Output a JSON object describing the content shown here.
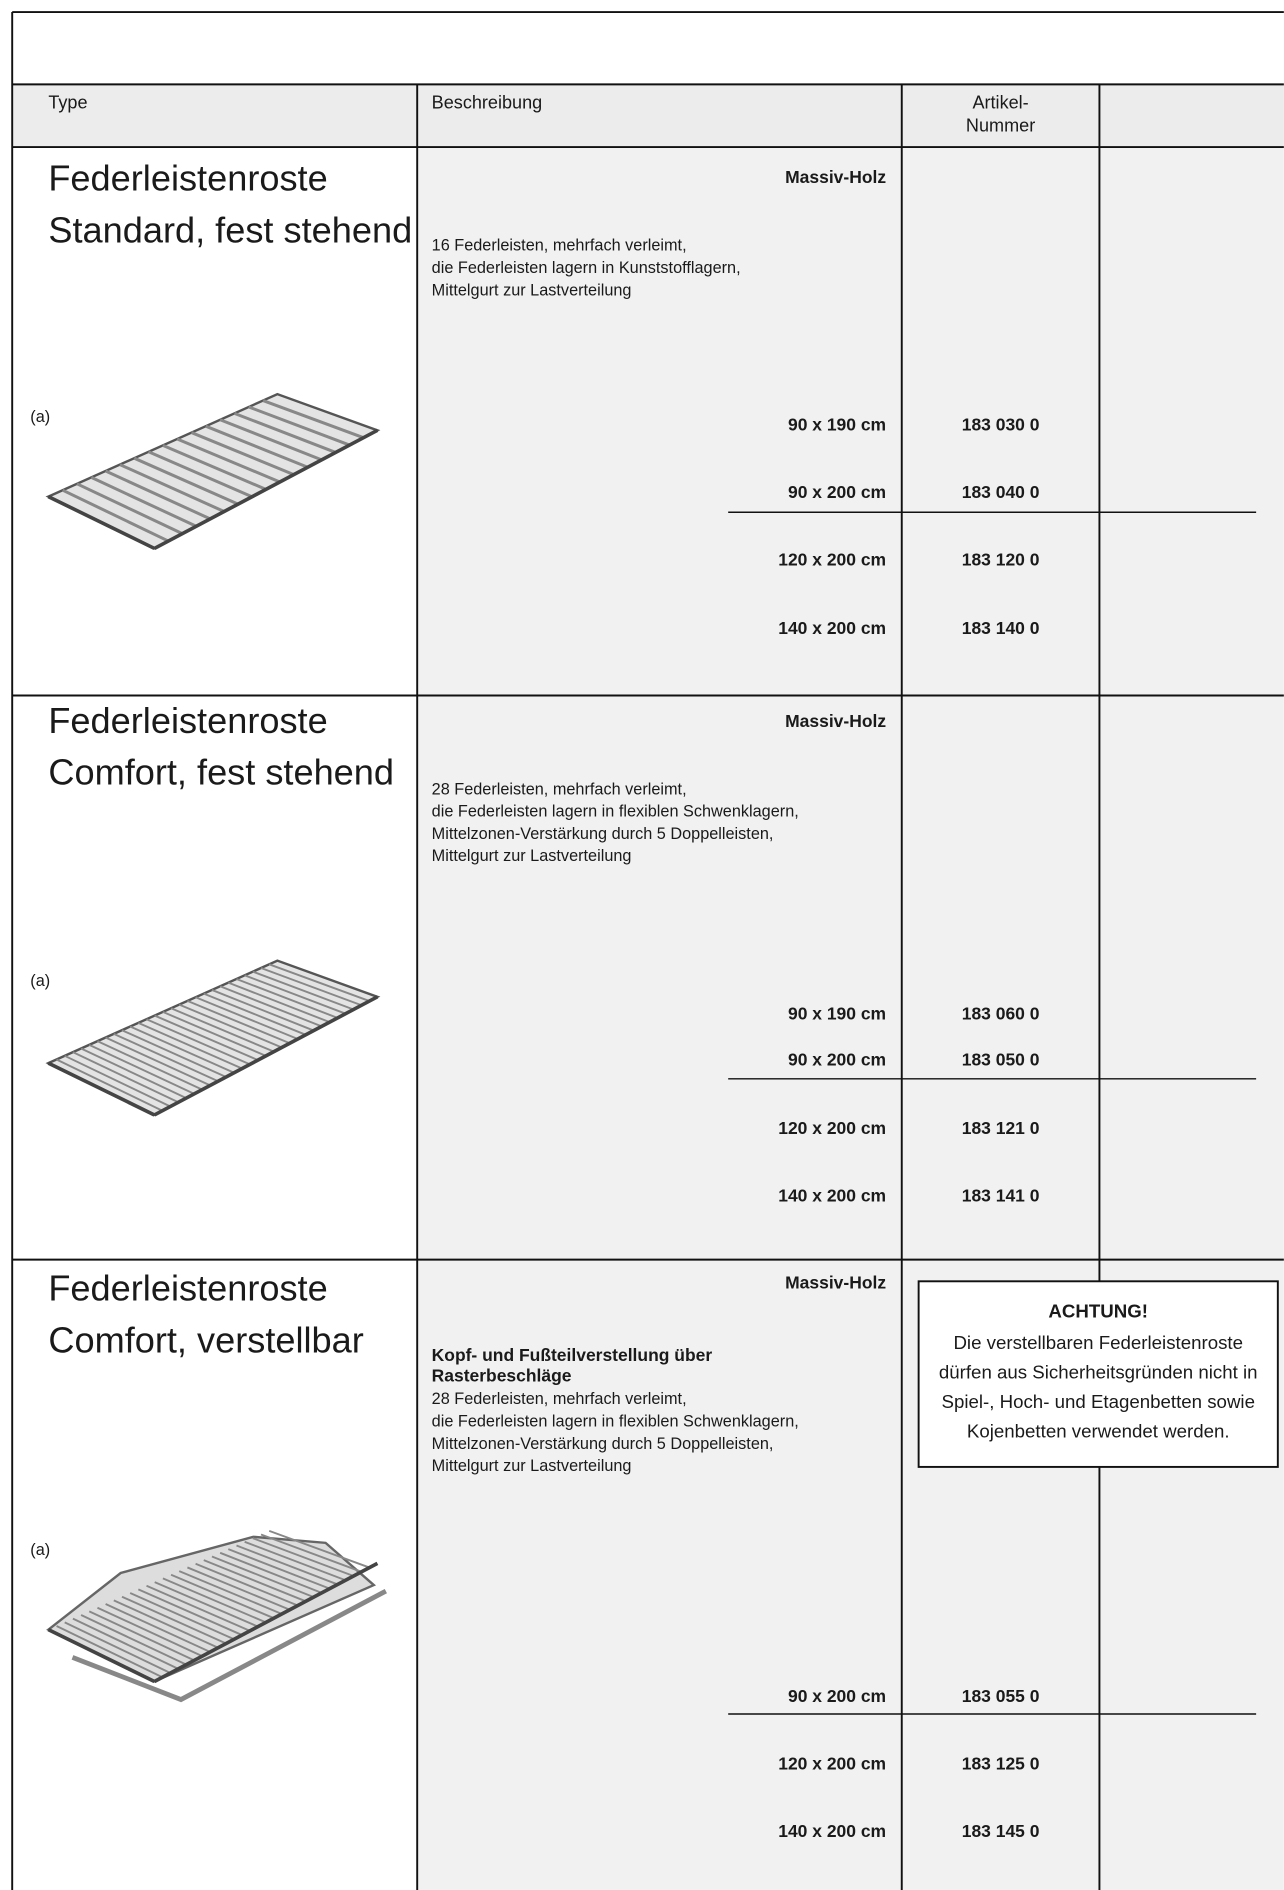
{
  "header": {
    "columns": [
      "Type",
      "Beschreibung"
    ],
    "article": [
      "Artikel-",
      "Nummer"
    ]
  },
  "sections": [
    {
      "title": [
        "Federleistenroste",
        "Standard, fest stehend"
      ],
      "material": "Massiv-Holz",
      "description": [
        "16 Federleisten, mehrfach verleimt,",
        "die Federleisten lagern in Kunststofflagern,",
        "Mittelgurt zur Lastverteilung"
      ],
      "image_label": "(a)",
      "items": [
        {
          "size": "90 x 190 cm",
          "number": "183 030 0"
        },
        {
          "size": "90 x 200 cm",
          "number": "183 040 0"
        },
        {
          "size": "120 x 200 cm",
          "number": "183 120 0"
        },
        {
          "size": "140 x 200 cm",
          "number": "183 140 0"
        }
      ]
    },
    {
      "title": [
        "Federleistenroste",
        "Comfort, fest stehend"
      ],
      "material": "Massiv-Holz",
      "description": [
        "28 Federleisten, mehrfach verleimt,",
        "die Federleisten lagern in flexiblen Schwenklagern,",
        "Mittelzonen-Verstärkung durch 5 Doppelleisten,",
        "Mittelgurt zur Lastverteilung"
      ],
      "image_label": "(a)",
      "items": [
        {
          "size": "90 x 190 cm",
          "number": "183 060 0"
        },
        {
          "size": "90 x 200 cm",
          "number": "183 050 0"
        },
        {
          "size": "120 x 200 cm",
          "number": "183 121 0"
        },
        {
          "size": "140 x 200 cm",
          "number": "183 141 0"
        }
      ]
    },
    {
      "title": [
        "Federleistenroste",
        "Comfort, verstellbar"
      ],
      "material": "Massiv-Holz",
      "lead": [
        "Kopf- und Fußteilverstellung über",
        "Rasterbeschläge"
      ],
      "description": [
        "28 Federleisten, mehrfach verleimt,",
        "die Federleisten lagern in flexiblen Schwenklagern,",
        "Mittelzonen-Verstärkung durch 5 Doppelleisten,",
        "Mittelgurt zur Lastverteilung"
      ],
      "image_label": "(a)",
      "items": [
        {
          "size": "90 x 200 cm",
          "number": "183 055 0"
        },
        {
          "size": "120 x 200 cm",
          "number": "183 125 0"
        },
        {
          "size": "140 x 200 cm",
          "number": "183 145 0"
        }
      ],
      "notice": {
        "title": "ACHTUNG!",
        "lines": [
          "Die verstellbaren Federleistenroste",
          "dürfen aus Sicherheitsgründen nicht in",
          "Spiel-, Hoch- und Etagenbetten sowie",
          "Kojenbetten verwendet werden."
        ]
      }
    }
  ]
}
